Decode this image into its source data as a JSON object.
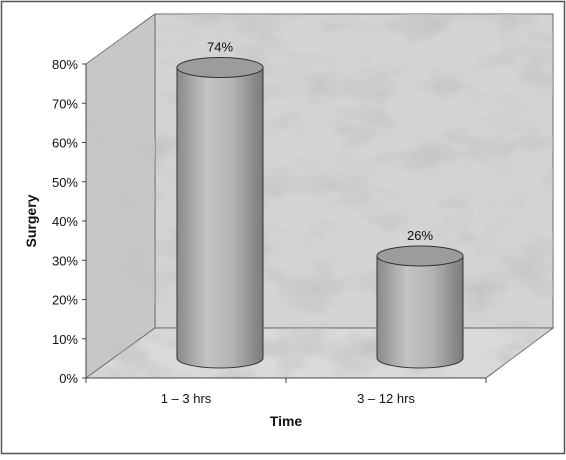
{
  "chart_data": {
    "type": "bar",
    "style": "3d-cylinder",
    "categories": [
      "1 – 3 hrs",
      "3 – 12 hrs"
    ],
    "values": [
      74,
      26
    ],
    "data_labels": [
      "74%",
      "26%"
    ],
    "xlabel": "Time",
    "ylabel": "Surgery",
    "ylim": [
      0,
      80
    ],
    "yticks": [
      "0%",
      "10%",
      "20%",
      "30%",
      "40%",
      "50%",
      "60%",
      "70%",
      "80%"
    ],
    "grid": false,
    "legend": "none",
    "colors": {
      "bar_fill": "#a9a9a9",
      "bar_top": "#9c9c9c",
      "wall": "#cfcfcf",
      "floor": "#d6d6d6",
      "axis": "#444444"
    }
  }
}
